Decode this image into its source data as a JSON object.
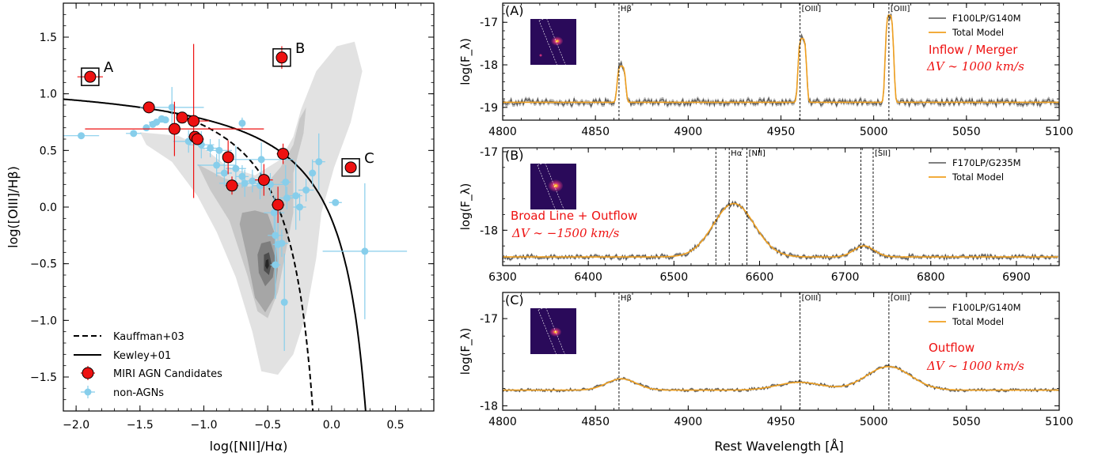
{
  "colors": {
    "agn": "#ee1111",
    "nonagn": "#87ceeb",
    "model": "#f0a020",
    "data_line": "#555555",
    "data_band": "#999999",
    "annotation": "#ee1111",
    "contours": [
      "#e2e2e2",
      "#c8c8c8",
      "#a6a6a6",
      "#7e7e7e",
      "#4e4e4e",
      "#262626"
    ]
  },
  "chart_data": [
    {
      "type": "scatter",
      "title": "",
      "xlabel": "log([NII]/Hα)",
      "ylabel": "log([OIII]/Hβ)",
      "xlim": [
        -2.1,
        0.8
      ],
      "ylim": [
        -1.8,
        1.8
      ],
      "xticks": [
        "−2.0",
        "−1.5",
        "−1.0",
        "−0.5",
        "0.0",
        "0.5"
      ],
      "yticks": [
        "1.5",
        "1.0",
        "0.5",
        "0.0",
        "−0.5",
        "−1.0",
        "−1.5"
      ],
      "legend": {
        "position": "bottom-left",
        "entries": [
          "Kauffman+03",
          "Kewley+01",
          "MIRI AGN Candidates",
          "non-AGNs"
        ]
      },
      "curves": [
        {
          "name": "Kauffman+03",
          "style": "dashed",
          "formula": "0.61/(x-0.05)+1.3"
        },
        {
          "name": "Kewley+01",
          "style": "solid",
          "formula": "0.61/(x-0.47)+1.19"
        }
      ],
      "series": [
        {
          "name": "MIRI AGN Candidates",
          "points": [
            {
              "x": -1.89,
              "y": 1.15,
              "xerr": 0.1,
              "yerr": 0.04,
              "label": "A",
              "boxed": true
            },
            {
              "x": -0.39,
              "y": 1.32,
              "xerr": 0.04,
              "yerr": 0.1,
              "label": "B",
              "boxed": true
            },
            {
              "x": 0.15,
              "y": 0.35,
              "xerr": 0.03,
              "yerr": 0.03,
              "label": "C",
              "boxed": true
            },
            {
              "x": -1.43,
              "y": 0.88,
              "xerr": 0.0,
              "yerr": 0.0
            },
            {
              "x": -1.17,
              "y": 0.79,
              "xerr": 0.0,
              "yerr": 0.0
            },
            {
              "x": -1.08,
              "y": 0.76,
              "xerr": 0.12,
              "yerr": 0.68
            },
            {
              "x": -1.23,
              "y": 0.69,
              "xerr": 0.7,
              "yerr": 0.24
            },
            {
              "x": -1.07,
              "y": 0.62,
              "xerr": 0.05,
              "yerr": 0.0
            },
            {
              "x": -1.05,
              "y": 0.6,
              "xerr": 0.05,
              "yerr": 0.0
            },
            {
              "x": -0.81,
              "y": 0.44,
              "xerr": 0.04,
              "yerr": 0.15
            },
            {
              "x": -0.38,
              "y": 0.47,
              "xerr": 0.05,
              "yerr": 0.09
            },
            {
              "x": -0.78,
              "y": 0.19,
              "xerr": 0.05,
              "yerr": 0.08
            },
            {
              "x": -0.53,
              "y": 0.24,
              "xerr": 0.07,
              "yerr": 0.14
            },
            {
              "x": -0.42,
              "y": 0.02,
              "xerr": 0.05,
              "yerr": 0.16
            }
          ]
        },
        {
          "name": "non-AGNs",
          "points": [
            {
              "x": -1.96,
              "y": 0.63,
              "xerr": 0.14,
              "yerr": 0.0
            },
            {
              "x": -1.37,
              "y": 0.75,
              "xerr": 0.06,
              "yerr": 0.0
            },
            {
              "x": -1.33,
              "y": 0.78,
              "xerr": 0.0,
              "yerr": 0.0
            },
            {
              "x": -1.3,
              "y": 0.77,
              "xerr": 0.0,
              "yerr": 0.0
            },
            {
              "x": -1.4,
              "y": 0.73,
              "xerr": 0.0,
              "yerr": 0.0
            },
            {
              "x": -1.45,
              "y": 0.7,
              "xerr": 0.0,
              "yerr": 0.0
            },
            {
              "x": -1.55,
              "y": 0.65,
              "xerr": 0.06,
              "yerr": 0.0
            },
            {
              "x": -1.25,
              "y": 0.88,
              "xerr": 0.25,
              "yerr": 0.18
            },
            {
              "x": -1.12,
              "y": 0.58,
              "xerr": 0.12,
              "yerr": 0.1
            },
            {
              "x": -1.02,
              "y": 0.55,
              "xerr": 0.1,
              "yerr": 0.12
            },
            {
              "x": -0.95,
              "y": 0.52,
              "xerr": 0.08,
              "yerr": 0.08
            },
            {
              "x": -0.88,
              "y": 0.5,
              "xerr": 0.1,
              "yerr": 0.1
            },
            {
              "x": -0.7,
              "y": 0.74,
              "xerr": 0.0,
              "yerr": 0.05
            },
            {
              "x": -0.9,
              "y": 0.37,
              "xerr": 0.15,
              "yerr": 0.1
            },
            {
              "x": -0.84,
              "y": 0.3,
              "xerr": 0.06,
              "yerr": 0.12
            },
            {
              "x": -0.75,
              "y": 0.34,
              "xerr": 0.08,
              "yerr": 0.2
            },
            {
              "x": -0.7,
              "y": 0.27,
              "xerr": 0.05,
              "yerr": 0.1
            },
            {
              "x": -0.68,
              "y": 0.21,
              "xerr": 0.2,
              "yerr": 0.12
            },
            {
              "x": -0.62,
              "y": 0.23,
              "xerr": 0.06,
              "yerr": 0.1
            },
            {
              "x": -0.56,
              "y": 0.19,
              "xerr": 0.06,
              "yerr": 0.12
            },
            {
              "x": -0.55,
              "y": 0.42,
              "xerr": 0.25,
              "yerr": 0.15
            },
            {
              "x": -0.48,
              "y": 0.2,
              "xerr": 0.1,
              "yerr": 0.1
            },
            {
              "x": -0.45,
              "y": -0.05,
              "xerr": 0.08,
              "yerr": 0.15
            },
            {
              "x": -0.44,
              "y": -0.25,
              "xerr": 0.06,
              "yerr": 0.28
            },
            {
              "x": -0.42,
              "y": -0.33,
              "xerr": 0.04,
              "yerr": 0.2
            },
            {
              "x": -0.44,
              "y": -0.51,
              "xerr": 0.04,
              "yerr": 0.3
            },
            {
              "x": -0.39,
              "y": -0.32,
              "xerr": 0.05,
              "yerr": 0.12
            },
            {
              "x": -0.37,
              "y": -0.84,
              "xerr": 0.0,
              "yerr": 0.43
            },
            {
              "x": -0.36,
              "y": 0.22,
              "xerr": 0.04,
              "yerr": 0.15
            },
            {
              "x": -0.35,
              "y": 0.08,
              "xerr": 0.06,
              "yerr": 0.1
            },
            {
              "x": -0.28,
              "y": 0.1,
              "xerr": 0.05,
              "yerr": 0.3
            },
            {
              "x": -0.25,
              "y": 0.0,
              "xerr": 0.05,
              "yerr": 0.12
            },
            {
              "x": -0.2,
              "y": 0.15,
              "xerr": 0.06,
              "yerr": 0.1
            },
            {
              "x": -0.15,
              "y": 0.3,
              "xerr": 0.0,
              "yerr": 0.12
            },
            {
              "x": -0.1,
              "y": 0.4,
              "xerr": 0.05,
              "yerr": 0.25
            },
            {
              "x": 0.03,
              "y": 0.04,
              "xerr": 0.05,
              "yerr": 0.0
            },
            {
              "x": 0.26,
              "y": -0.39,
              "xerr": 0.33,
              "yerr": 0.6
            }
          ]
        }
      ],
      "annotations": [
        "A",
        "B",
        "C"
      ]
    },
    {
      "type": "line",
      "panel_label": "(A)",
      "xlabel": "",
      "ylabel": "log(F_λ)",
      "xlim": [
        4800,
        5100
      ],
      "ylim": [
        -19.3,
        -16.55
      ],
      "xticks": [
        "4800",
        "4850",
        "4900",
        "4950",
        "5000",
        "5050",
        "5100"
      ],
      "yticks": [
        "-17",
        "-18",
        "-19"
      ],
      "legend": {
        "position": "top-right",
        "entries": [
          "F100LP/G140M",
          "Total Model"
        ]
      },
      "lines": [
        {
          "label": "Hβ",
          "x": 4862.7
        },
        {
          "label": "[OIII]",
          "x": 4960.3
        },
        {
          "label": "[OIII]",
          "x": 5008.2
        }
      ],
      "features": [
        {
          "center": 4864,
          "amplitude": 0.85,
          "width": 4,
          "shape": "step"
        },
        {
          "center": 4961.5,
          "amplitude": 1.5,
          "width": 4,
          "shape": "step"
        },
        {
          "center": 5008.5,
          "amplitude": 2.05,
          "width": 4,
          "shape": "step"
        }
      ],
      "model_continuum": -18.88,
      "noise": 0.07,
      "annotation": [
        "Inflow / Merger",
        "ΔV ∼ 1000 km/s"
      ]
    },
    {
      "type": "line",
      "panel_label": "(B)",
      "xlabel": "",
      "ylabel": "log(F_λ)",
      "xlim": [
        6300,
        6950
      ],
      "ylim": [
        -18.45,
        -16.95
      ],
      "xticks": [
        "6300",
        "6400",
        "6500",
        "6600",
        "6700",
        "6800",
        "6900"
      ],
      "yticks": [
        "-17",
        "-18"
      ],
      "legend": {
        "position": "top-right",
        "entries": [
          "F170LP/G235M"
        ]
      },
      "lines": [
        {
          "label": "",
          "x": 6549
        },
        {
          "label": "Hα",
          "x": 6564.6
        },
        {
          "label": "[NII]",
          "x": 6585.3
        },
        {
          "label": "",
          "x": 6718.3
        },
        {
          "label": "[SII]",
          "x": 6732.7
        }
      ],
      "features": [
        {
          "center": 6570,
          "amplitude": 0.68,
          "width": 24,
          "shape": "broad"
        },
        {
          "center": 6722,
          "amplitude": 0.14,
          "width": 12,
          "shape": "broad"
        }
      ],
      "model_continuum": -18.34,
      "noise": 0.025,
      "annotation": [
        "Broad Line + Outflow",
        "ΔV ∼ −1500 km/s"
      ]
    },
    {
      "type": "line",
      "panel_label": "(C)",
      "xlabel": "Rest Wavelength [Å]",
      "ylabel": "log(F_λ)",
      "xlim": [
        4800,
        5100
      ],
      "ylim": [
        -18.05,
        -16.7
      ],
      "xticks": [
        "4800",
        "4850",
        "4900",
        "4950",
        "5000",
        "5050",
        "5100"
      ],
      "yticks": [
        "-17",
        "-18"
      ],
      "legend": {
        "position": "top-right",
        "entries": [
          "F100LP/G140M",
          "Total Model"
        ]
      },
      "lines": [
        {
          "label": "Hβ",
          "x": 4862.7
        },
        {
          "label": "[OIII]",
          "x": 4960.3
        },
        {
          "label": "[OIII]",
          "x": 5008.2
        }
      ],
      "features": [
        {
          "center": 4864,
          "amplitude": 0.13,
          "width": 8,
          "shape": "broad"
        },
        {
          "center": 4960,
          "amplitude": 0.09,
          "width": 12,
          "shape": "broad"
        },
        {
          "center": 5008,
          "amplitude": 0.27,
          "width": 12,
          "shape": "broad"
        }
      ],
      "model_continuum": -17.82,
      "noise": 0.015,
      "annotation": [
        "Outflow",
        "ΔV ∼ 1000 km/s"
      ]
    }
  ]
}
